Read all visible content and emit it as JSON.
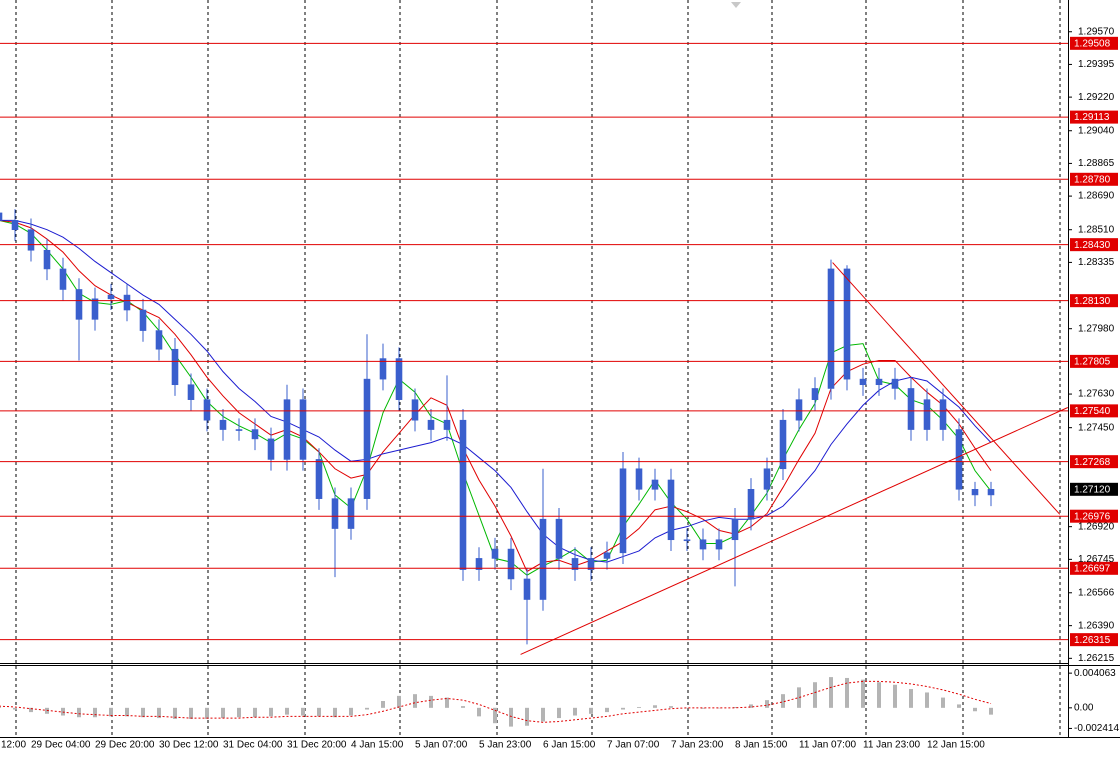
{
  "chart_data": [
    {
      "type": "candlestick",
      "color": "#3a5fcd",
      "categories": [
        "12:00",
        null,
        null,
        null,
        "29 Dec 04:00",
        null,
        null,
        null,
        "29 Dec 20:00",
        null,
        null,
        null,
        "30 Dec 12:00",
        null,
        null,
        null,
        "31 Dec 04:00",
        null,
        null,
        null,
        "31 Dec 20:00",
        null,
        null,
        null,
        "4 Jan 15:00",
        null,
        null,
        null,
        "5 Jan 07:00",
        null,
        null,
        null,
        "5 Jan 23:00",
        null,
        null,
        null,
        "6 Jan 15:00",
        null,
        null,
        null,
        "7 Jan 07:00",
        null,
        null,
        null,
        "7 Jan 23:00",
        null,
        null,
        null,
        "8 Jan 15:00",
        null,
        null,
        null,
        "11 Jan 07:00",
        null,
        null,
        null,
        "11 Jan 23:00",
        null,
        null,
        null,
        "12 Jan 15:00",
        null,
        null
      ],
      "open": [
        1.286,
        1.2856,
        1.2851,
        1.284,
        1.283,
        1.2819,
        1.2803,
        1.2814,
        1.2816,
        1.2808,
        1.2797,
        1.2787,
        1.2768,
        1.276,
        1.2749,
        1.2744,
        1.2744,
        1.2739,
        1.2728,
        1.276,
        1.2728,
        1.2707,
        1.2691,
        1.2707,
        1.2771,
        1.2782,
        1.276,
        1.2749,
        1.2744,
        1.2749,
        1.2669,
        1.2675,
        1.268,
        1.2664,
        1.2653,
        1.2696,
        1.2675,
        1.2669,
        1.2675,
        1.2678,
        1.2723,
        1.2712,
        1.2717,
        1.2685,
        1.2685,
        1.268,
        1.2685,
        1.2696,
        1.2712,
        1.2723,
        1.2749,
        1.276,
        1.2766,
        1.283,
        1.2771,
        1.2768,
        1.2771,
        1.2766,
        1.2744,
        1.276,
        1.2744,
        1.2712,
        1.2709
      ],
      "high": [
        1.2868,
        1.2862,
        1.2857,
        1.2846,
        1.2836,
        1.2825,
        1.282,
        1.2822,
        1.2822,
        1.2814,
        1.2803,
        1.2793,
        1.2774,
        1.2766,
        1.2755,
        1.275,
        1.275,
        1.2745,
        1.2768,
        1.2766,
        1.2734,
        1.2713,
        1.2713,
        1.2795,
        1.279,
        1.2788,
        1.2766,
        1.2755,
        1.2773,
        1.2755,
        1.2681,
        1.2686,
        1.2686,
        1.267,
        1.2723,
        1.2702,
        1.2681,
        1.2681,
        1.2684,
        1.2732,
        1.2729,
        1.2723,
        1.2723,
        1.2691,
        1.2691,
        1.2691,
        1.2702,
        1.2718,
        1.2729,
        1.2755,
        1.2766,
        1.2772,
        1.2835,
        1.2832,
        1.2777,
        1.2777,
        1.2777,
        1.2772,
        1.2766,
        1.2766,
        1.275,
        1.2716,
        1.2716
      ],
      "low": [
        1.285,
        1.2845,
        1.2834,
        1.2824,
        1.2813,
        1.2781,
        1.2797,
        1.2808,
        1.2802,
        1.2791,
        1.2781,
        1.2762,
        1.2754,
        1.2743,
        1.2738,
        1.2738,
        1.2733,
        1.2722,
        1.2722,
        1.2722,
        1.2701,
        1.2665,
        1.2685,
        1.2701,
        1.2765,
        1.2754,
        1.2743,
        1.2738,
        1.2738,
        1.2663,
        1.2663,
        1.2669,
        1.2658,
        1.2629,
        1.2647,
        1.2669,
        1.2663,
        1.2663,
        1.2669,
        1.2672,
        1.2706,
        1.2706,
        1.2679,
        1.2679,
        1.2674,
        1.2674,
        1.266,
        1.269,
        1.2706,
        1.2717,
        1.2743,
        1.2754,
        1.276,
        1.2765,
        1.2762,
        1.2762,
        1.276,
        1.2738,
        1.2738,
        1.2738,
        1.2706,
        1.2703,
        1.2703
      ],
      "close": [
        1.2856,
        1.2851,
        1.284,
        1.283,
        1.2819,
        1.2803,
        1.2814,
        1.2816,
        1.2808,
        1.2797,
        1.2787,
        1.2768,
        1.276,
        1.2749,
        1.2744,
        1.2744,
        1.2739,
        1.2728,
        1.276,
        1.2728,
        1.2707,
        1.2691,
        1.2707,
        1.2771,
        1.2782,
        1.276,
        1.2749,
        1.2744,
        1.2749,
        1.2669,
        1.2675,
        1.268,
        1.2664,
        1.2653,
        1.2696,
        1.2675,
        1.2669,
        1.2675,
        1.2678,
        1.2723,
        1.2712,
        1.2717,
        1.2685,
        1.2685,
        1.268,
        1.2685,
        1.2696,
        1.2712,
        1.2723,
        1.2749,
        1.276,
        1.2766,
        1.283,
        1.2771,
        1.2768,
        1.2771,
        1.2766,
        1.2744,
        1.276,
        1.2744,
        1.2712,
        1.2709,
        1.2712
      ],
      "series": [
        {
          "color": "#00b800",
          "values": [
            1.2856,
            1.2854,
            1.2849,
            1.284,
            1.283,
            1.2817,
            1.2812,
            1.2811,
            1.2813,
            1.2807,
            1.2797,
            1.2784,
            1.2772,
            1.2759,
            1.2751,
            1.2746,
            1.2742,
            1.2737,
            1.2742,
            1.2739,
            1.2732,
            1.2709,
            1.2702,
            1.2723,
            1.2753,
            1.2771,
            1.2764,
            1.2751,
            1.2747,
            1.2721,
            1.2698,
            1.2675,
            1.2673,
            1.2666,
            1.2671,
            1.2675,
            1.268,
            1.2673,
            1.2674,
            1.2692,
            1.2704,
            1.2717,
            1.2705,
            1.2696,
            1.2683,
            1.2683,
            1.2687,
            1.2698,
            1.271,
            1.2728,
            1.2744,
            1.2758,
            1.2785,
            1.2789,
            1.279,
            1.277,
            1.2768,
            1.276,
            1.2757,
            1.2749,
            1.2739,
            1.2722,
            1.2711
          ]
        },
        {
          "color": "#e00000",
          "values": [
            1.2856,
            1.2855,
            1.2852,
            1.2846,
            1.2839,
            1.2829,
            1.2821,
            1.2816,
            1.2812,
            1.2808,
            1.2804,
            1.2795,
            1.2784,
            1.2772,
            1.2762,
            1.2753,
            1.2747,
            1.2741,
            1.2744,
            1.274,
            1.2732,
            1.2723,
            1.2718,
            1.272,
            1.2732,
            1.2742,
            1.2752,
            1.2761,
            1.2757,
            1.2734,
            1.2717,
            1.2703,
            1.2687,
            1.2668,
            1.2673,
            1.2674,
            1.2671,
            1.2674,
            1.2679,
            1.2684,
            1.2691,
            1.2701,
            1.2703,
            1.27,
            1.2696,
            1.269,
            1.2688,
            1.2692,
            1.2699,
            1.2713,
            1.2728,
            1.2742,
            1.2766,
            1.2775,
            1.2779,
            1.2781,
            1.2781,
            1.2772,
            1.2764,
            1.2757,
            1.2747,
            1.2734,
            1.2722
          ]
        },
        {
          "color": "#1c1cd0",
          "values": [
            1.2856,
            1.2856,
            1.2854,
            1.2851,
            1.2847,
            1.2841,
            1.2834,
            1.2828,
            1.2822,
            1.2816,
            1.2811,
            1.2803,
            1.2795,
            1.2786,
            1.2775,
            1.2766,
            1.2759,
            1.2751,
            1.2748,
            1.2744,
            1.274,
            1.2733,
            1.2727,
            1.2728,
            1.2731,
            1.2733,
            1.2735,
            1.2737,
            1.274,
            1.2736,
            1.2729,
            1.2722,
            1.2713,
            1.27,
            1.2688,
            1.2681,
            1.2677,
            1.2674,
            1.2673,
            1.2676,
            1.2679,
            1.2686,
            1.269,
            1.2692,
            1.2695,
            1.2697,
            1.2696,
            1.2696,
            1.2698,
            1.2703,
            1.2712,
            1.2722,
            1.2736,
            1.2747,
            1.2757,
            1.2765,
            1.277,
            1.2772,
            1.277,
            1.2763,
            1.2756,
            1.2746,
            1.2737
          ]
        }
      ],
      "ylim": [
        1.2619,
        1.2974
      ],
      "yticks": [
        {
          "value": 1.2957,
          "label": "1.29570"
        },
        1.29395,
        {
          "value": 1.2922,
          "label": "1.29220"
        },
        {
          "value": 1.2904,
          "label": "1.29040"
        },
        1.28865,
        {
          "value": 1.2869,
          "label": "1.28690"
        },
        {
          "value": 1.2851,
          "label": "1.28510"
        },
        1.28335,
        {
          "value": 1.2798,
          "label": "1.27980"
        },
        {
          "value": 1.2763,
          "label": "1.27630"
        },
        {
          "value": 1.2745,
          "label": "1.27450"
        },
        {
          "value": 1.2692,
          "label": "1.26920"
        },
        1.26745,
        1.26566,
        {
          "value": 1.2639,
          "label": "1.26390"
        },
        1.26215
      ],
      "level_color": "#e00000",
      "levels": [
        1.29508,
        1.29113,
        {
          "value": 1.2878,
          "label": "1.28780"
        },
        {
          "value": 1.2843,
          "label": "1.28430"
        },
        {
          "value": 1.2813,
          "label": "1.28130"
        },
        1.27805,
        {
          "value": 1.2754,
          "label": "1.27540"
        },
        1.27268,
        1.26976,
        1.26697,
        1.26315
      ],
      "trendlines": [
        {
          "x": [
            32.6,
            66.8
          ],
          "y": [
            1.26236,
            1.27558
          ]
        },
        {
          "x": [
            52.1,
            66.3
          ],
          "y": [
            1.28334,
            1.26986
          ]
        }
      ],
      "last_price": {
        "value": 1.2712,
        "label": "1.27120"
      }
    },
    {
      "type": "histogram",
      "color": "#b4b4b4",
      "values": [
        0.0001,
        -0.0002,
        -0.0005,
        -0.0007,
        -0.0009,
        -0.0011,
        -0.0011,
        -0.001,
        -0.001,
        -0.0011,
        -0.0012,
        -0.0013,
        -0.0013,
        -0.0013,
        -0.0012,
        -0.0011,
        -0.0011,
        -0.001,
        -0.0008,
        -0.0009,
        -0.001,
        -0.0011,
        -0.0009,
        -0.0002,
        0.0008,
        0.0014,
        0.0016,
        0.0014,
        0.0012,
        0.0002,
        -0.001,
        -0.0018,
        -0.0022,
        -0.0021,
        -0.0016,
        -0.0012,
        -0.0009,
        -0.0007,
        -0.0005,
        -0.0002,
        0.0001,
        0.0003,
        0.0002,
        0.0,
        -0.0001,
        0.0,
        0.0001,
        0.0004,
        0.0009,
        0.0016,
        0.0024,
        0.003,
        0.0036,
        0.0035,
        0.0033,
        0.003,
        0.0027,
        0.0022,
        0.0018,
        0.0012,
        0.0004,
        -0.0004,
        -0.0008
      ],
      "signal": {
        "color": "#e00000",
        "values": [
          0.0002,
          0.0001,
          -0.0001,
          -0.0003,
          -0.0005,
          -0.0007,
          -0.0008,
          -0.0009,
          -0.0009,
          -0.001,
          -0.001,
          -0.0011,
          -0.0012,
          -0.0012,
          -0.0012,
          -0.0012,
          -0.0011,
          -0.0011,
          -0.001,
          -0.001,
          -0.001,
          -0.001,
          -0.001,
          -0.0008,
          -0.0004,
          0.0001,
          0.0006,
          0.0009,
          0.0011,
          0.0009,
          0.0004,
          -0.0003,
          -0.001,
          -0.0015,
          -0.0017,
          -0.0016,
          -0.0014,
          -0.0012,
          -0.001,
          -0.0007,
          -0.0005,
          -0.0003,
          -0.0001,
          0.0,
          0.0,
          0.0,
          0.0,
          0.0001,
          0.0003,
          0.0007,
          0.0012,
          0.0018,
          0.0024,
          0.0029,
          0.0031,
          0.0031,
          0.003,
          0.0028,
          0.0025,
          0.0021,
          0.0016,
          0.001,
          0.0005
        ]
      },
      "ylim": [
        -0.0033,
        0.0049
      ],
      "yticks": [
        0.004063,
        {
          "value": 0,
          "label": "0.00"
        },
        -0.002414
      ]
    }
  ]
}
